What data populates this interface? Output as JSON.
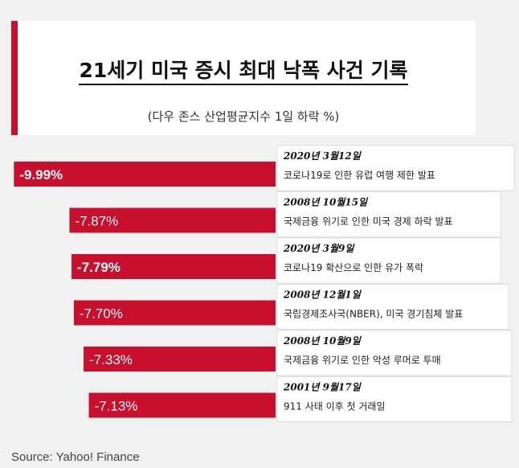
{
  "title": "21세기 미국 증시 최대 낙폭 사건 기록",
  "subtitle": "(다우 존스 산업평균지수 1일 하락 %)",
  "source": "Source: Yahoo! Finance",
  "colors": {
    "bar": "#c8102e",
    "accent": "#c8102e",
    "card": "#ffffff",
    "background": "#f1f1f1"
  },
  "chart_data": {
    "type": "bar",
    "orientation": "horizontal",
    "title": "21세기 미국 증시 최대 낙폭 사건 기록",
    "subtitle": "(다우 존스 산업평균지수 1일 하락 %)",
    "unit": "%",
    "categories": [
      "2020년 3월12일",
      "2008년 10월15일",
      "2020년 3월9일",
      "2008년 12월1일",
      "2008년 10월9일",
      "2001년 9월17일"
    ],
    "values": [
      -9.99,
      -7.87,
      -7.79,
      -7.7,
      -7.33,
      -7.13
    ],
    "value_labels": [
      "-9.99%",
      "-7.87%",
      "-7.79%",
      "-7.70%",
      "-7.33%",
      "-7.13%"
    ],
    "label_bold": [
      true,
      false,
      true,
      false,
      false,
      false
    ],
    "annotations": [
      "코로나19로 인한 유럽 여행 제한 발표",
      "국제금융 위기로 인한 미국 경제 하락 발표",
      "코로나19 확산으로 인한 유가 폭락",
      "국립경제조사국(NBER), 미국 경기침체 발표",
      "국제금융 위기로 인한 악성 루머로 투매",
      "911 사태 이후 첫 거래일"
    ],
    "xlim": [
      -10,
      0
    ],
    "grid": false,
    "legend": "none"
  }
}
